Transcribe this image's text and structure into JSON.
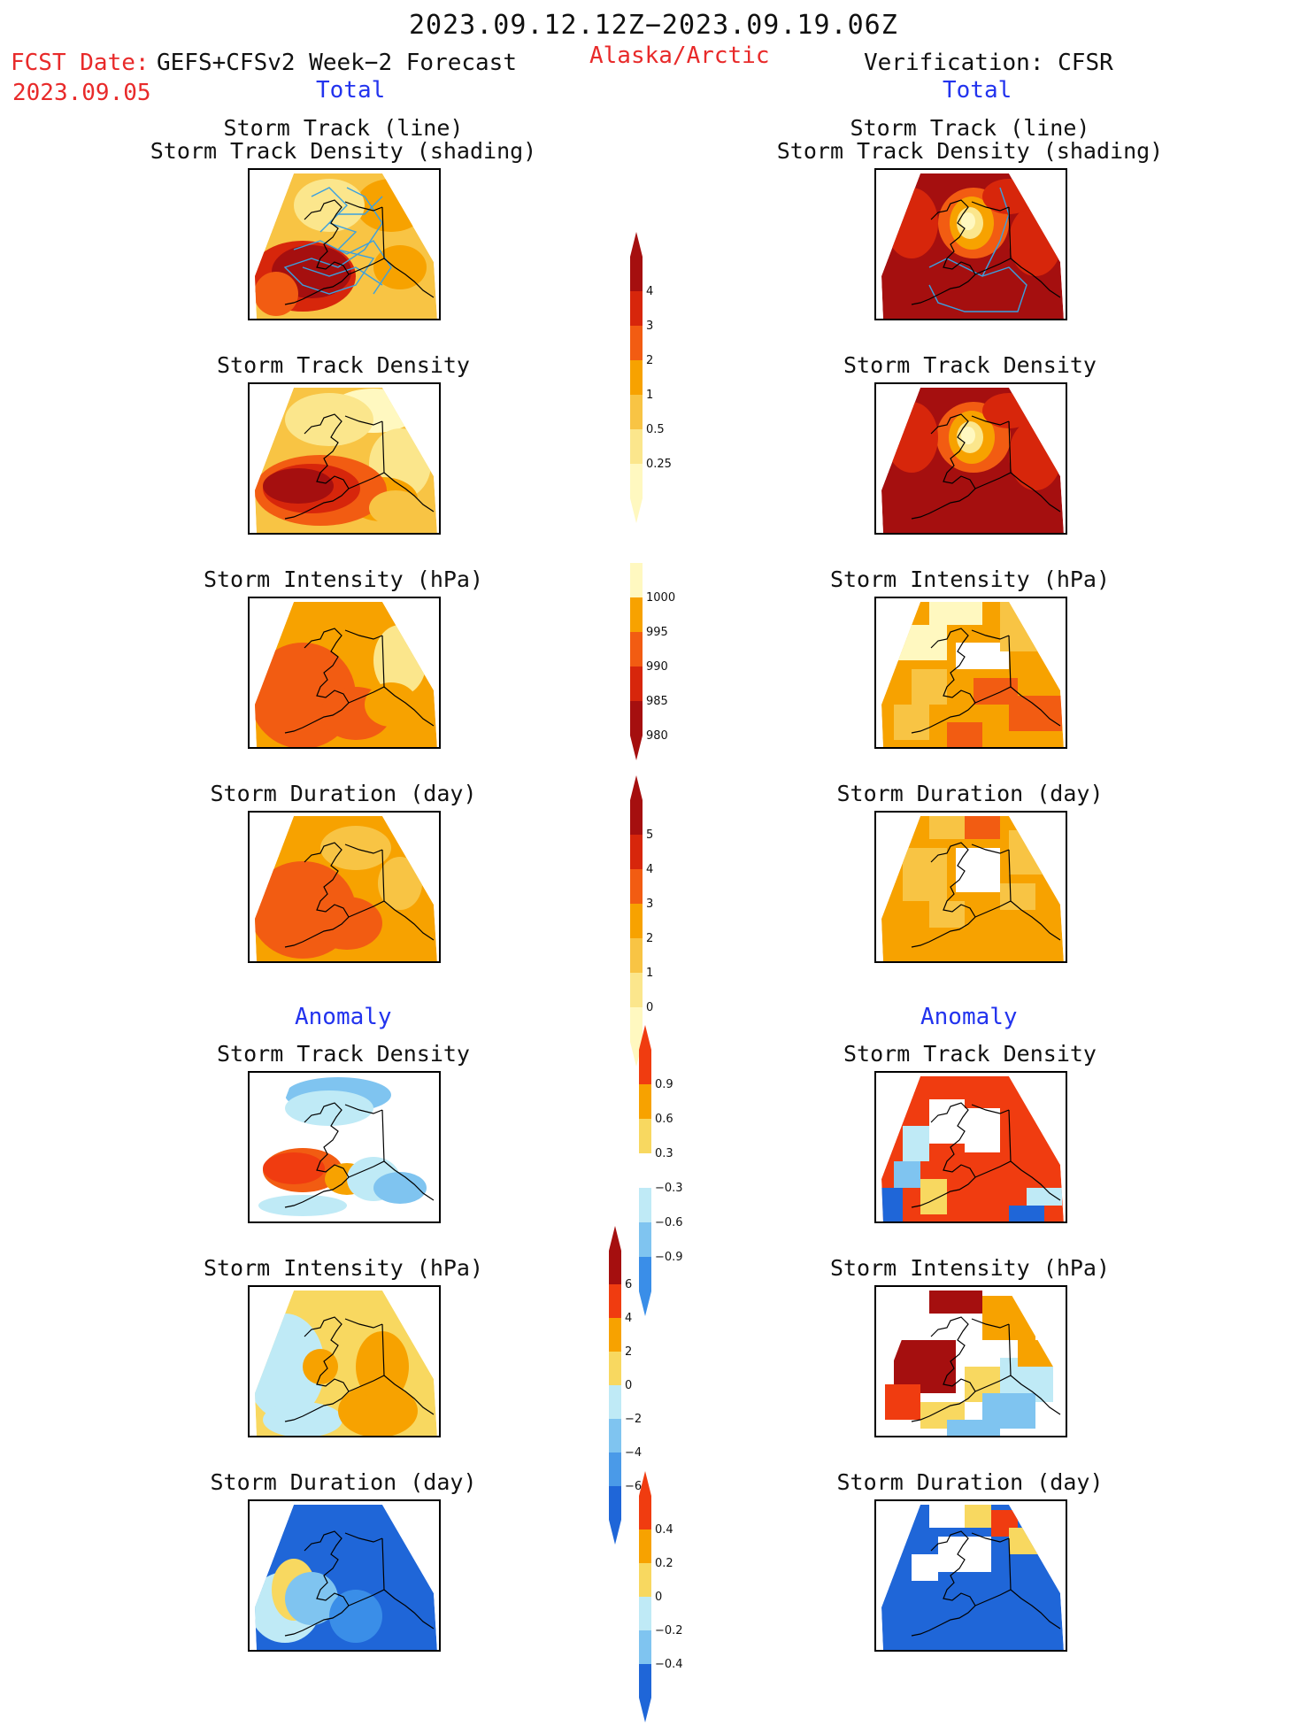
{
  "header": {
    "period": "2023.09.12.12Z−2023.09.19.06Z",
    "fcst_label": "FCST Date:",
    "fcst_model": "GEFS+CFSv2 Week−2 Forecast",
    "fcst_date": "2023.09.05",
    "region": "Alaska/Arctic",
    "verification": "Verification: CFSR",
    "left_section": "Total",
    "right_section": "Total",
    "left_anomaly": "Anomaly",
    "right_anomaly": "Anomaly"
  },
  "panel_titles": {
    "track_line": "Storm Track (line)",
    "track_shading": "Storm Track Density (shading)",
    "density": "Storm Track Density",
    "intensity": "Storm Intensity (hPa)",
    "duration": "Storm Duration (day)"
  },
  "colorbars": {
    "density_total": {
      "labels": [
        "4",
        "3",
        "2",
        "1",
        "0.5",
        "0.25"
      ],
      "colors": [
        "#a50f0f",
        "#d7260b",
        "#f25c12",
        "#f7a200",
        "#f8c444",
        "#fbe68c",
        "#fff8c0"
      ]
    },
    "intensity_total": {
      "labels": [
        "1000",
        "995",
        "990",
        "985",
        "980"
      ],
      "colors": [
        "#fff8c0",
        "#f7a200",
        "#f25c12",
        "#d7260b",
        "#a50f0f"
      ]
    },
    "duration_total": {
      "labels": [
        "5",
        "4",
        "3",
        "2",
        "1",
        "0"
      ],
      "colors": [
        "#a50f0f",
        "#d7260b",
        "#f25c12",
        "#f7a200",
        "#f8c444",
        "#fbe68c",
        "#fff8c0"
      ]
    },
    "density_anom": {
      "labels": [
        "0.9",
        "0.6",
        "0.3",
        "−0.3",
        "−0.6",
        "−0.9"
      ],
      "colors": [
        "#f03c10",
        "#f7a200",
        "#f8d860",
        "#ffffff",
        "#bfeaf6",
        "#7fc4f0",
        "#3a8ee8"
      ]
    },
    "intensity_anom": {
      "labels": [
        "6",
        "4",
        "2",
        "0",
        "−2",
        "−4",
        "−6"
      ],
      "colors": [
        "#a50f0f",
        "#f03c10",
        "#f7a200",
        "#f8d860",
        "#bfeaf6",
        "#7fc4f0",
        "#4a9ae8",
        "#1f66d8"
      ]
    },
    "duration_anom": {
      "labels": [
        "0.4",
        "0.2",
        "0",
        "−0.2",
        "−0.4"
      ],
      "colors": [
        "#f03c10",
        "#f7a200",
        "#f8d860",
        "#bfeaf6",
        "#7fc4f0",
        "#1f66d8"
      ]
    }
  },
  "palette": {
    "dark_red": "#a50f0f",
    "red": "#d7260b",
    "orange_red": "#f25c12",
    "orange": "#f7a200",
    "light_orange": "#f8c444",
    "yellow": "#fbe68c",
    "pale": "#fff8c0",
    "light_blue": "#bfeaf6",
    "mid_blue": "#7fc4f0",
    "blue": "#1f66d8",
    "track_line": "#3aa0e0"
  }
}
